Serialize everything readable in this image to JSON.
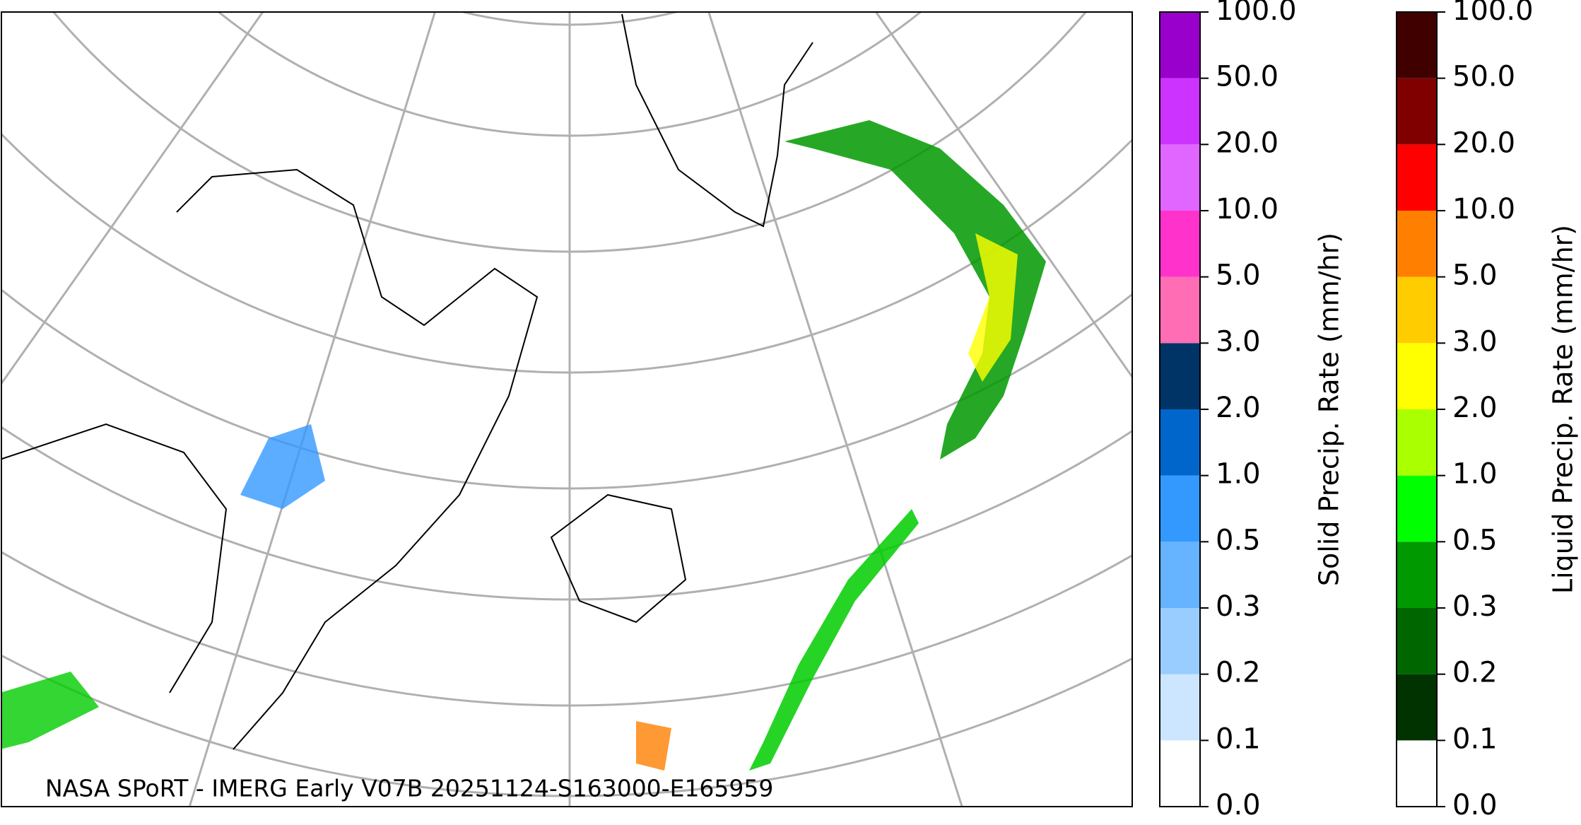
{
  "caption": "NASA SPoRT - IMERG Early V07B 20251124-S163000-E165959",
  "colorbars": [
    {
      "label": "Solid Precip. Rate (mm/hr)",
      "ticks": [
        {
          "value": 0,
          "label": "0.0"
        },
        {
          "value": 0.1,
          "label": "0.1"
        },
        {
          "value": 0.2,
          "label": "0.2"
        },
        {
          "value": 0.3,
          "label": "0.3"
        },
        {
          "value": 0.5,
          "label": "0.5"
        },
        {
          "value": 1,
          "label": "1.0"
        },
        {
          "value": 2,
          "label": "2.0"
        },
        {
          "value": 3,
          "label": "3.0"
        },
        {
          "value": 5,
          "label": "5.0"
        },
        {
          "value": 10,
          "label": "10.0"
        },
        {
          "value": 20,
          "label": "20.0"
        },
        {
          "value": 50,
          "label": "50.0"
        },
        {
          "value": 100,
          "label": "100.0"
        }
      ],
      "colors": [
        "#ffffff",
        "#cce6ff",
        "#99ccff",
        "#66b3ff",
        "#3399ff",
        "#0066cc",
        "#003366",
        "#ff6eb4",
        "#ff33cc",
        "#e066ff",
        "#cc33ff",
        "#9900cc"
      ]
    },
    {
      "label": "Liquid Precip. Rate (mm/hr)",
      "ticks": [
        {
          "value": 0,
          "label": "0.0"
        },
        {
          "value": 0.1,
          "label": "0.1"
        },
        {
          "value": 0.2,
          "label": "0.2"
        },
        {
          "value": 0.3,
          "label": "0.3"
        },
        {
          "value": 0.5,
          "label": "0.5"
        },
        {
          "value": 1,
          "label": "1.0"
        },
        {
          "value": 2,
          "label": "2.0"
        },
        {
          "value": 3,
          "label": "3.0"
        },
        {
          "value": 5,
          "label": "5.0"
        },
        {
          "value": 10,
          "label": "10.0"
        },
        {
          "value": 20,
          "label": "20.0"
        },
        {
          "value": 50,
          "label": "50.0"
        },
        {
          "value": 100,
          "label": "100.0"
        }
      ],
      "colors": [
        "#ffffff",
        "#003300",
        "#006600",
        "#009900",
        "#00ff00",
        "#aaff00",
        "#ffff00",
        "#ffcc00",
        "#ff8000",
        "#ff0000",
        "#800000",
        "#400000"
      ]
    }
  ]
}
